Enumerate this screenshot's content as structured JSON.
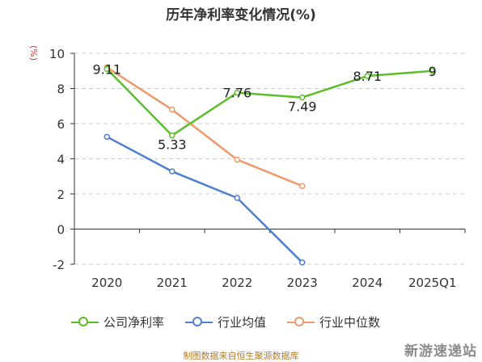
{
  "chart_data": {
    "type": "line",
    "title": "历年净利率变化情况(%)",
    "ylabel": "(%)",
    "xlabel": "",
    "categories": [
      "2020",
      "2021",
      "2022",
      "2023",
      "2024",
      "2025Q1"
    ],
    "ylim": [
      -2,
      10
    ],
    "yticks": [
      -2,
      0,
      2,
      4,
      6,
      8,
      10
    ],
    "grid": true,
    "legend_position": "bottom",
    "series": [
      {
        "name": "公司净利率",
        "color": "#5cbf2a",
        "show_labels": true,
        "values": [
          9.11,
          5.33,
          7.76,
          7.49,
          8.71,
          9
        ]
      },
      {
        "name": "行业均值",
        "color": "#4f7fd0",
        "show_labels": false,
        "values": [
          5.25,
          3.28,
          1.77,
          -1.9,
          null,
          null
        ]
      },
      {
        "name": "行业中位数",
        "color": "#ef9a6a",
        "show_labels": false,
        "values": [
          9.2,
          6.8,
          3.95,
          2.45,
          null,
          null
        ]
      }
    ]
  },
  "footer": {
    "source": "制图数据来自恒生聚源数据库",
    "watermark": "新游速递站"
  }
}
